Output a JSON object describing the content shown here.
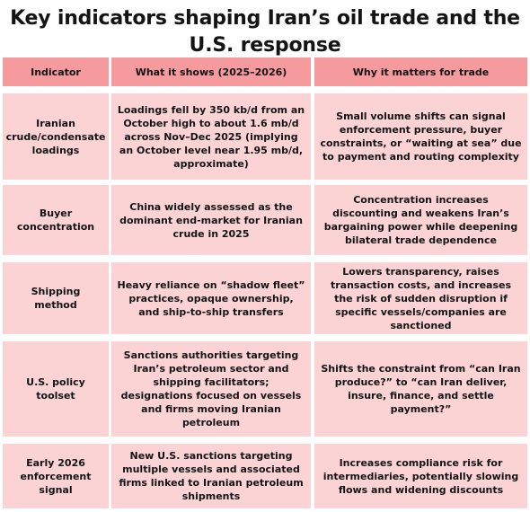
{
  "title": "Key indicators shaping Iran’s oil trade and the U.S. response",
  "columns": [
    "Indicator",
    "What it shows (2025–2026)",
    "Why it matters for trade"
  ],
  "rows": [
    {
      "indicator": "Iranian crude/condensate loadings",
      "what": "Loadings fell by 350 kb/d from an October high to about 1.6 mb/d across Nov–Dec 2025 (implying an October level near 1.95 mb/d, approximate)",
      "why": "Small volume shifts can signal enforcement pressure, buyer constraints, or “waiting at sea” due to payment and routing complexity"
    },
    {
      "indicator": "Buyer concentration",
      "what": "China widely assessed as the dominant end-market for Iranian crude in 2025",
      "why": "Concentration increases discounting and weakens Iran’s bargaining power while deepening bilateral trade dependence"
    },
    {
      "indicator": "Shipping method",
      "what": "Heavy reliance on “shadow fleet” practices, opaque ownership, and ship-to-ship transfers",
      "why": "Lowers transparency, raises transaction costs, and increases the risk of sudden disruption if specific vessels/companies are sanctioned"
    },
    {
      "indicator": "U.S. policy toolset",
      "what": "Sanctions authorities targeting Iran’s petroleum sector and shipping facilitators; designations focused on vessels and firms moving Iranian petroleum",
      "why": "Shifts the constraint from “can Iran produce?” to “can Iran deliver, insure, finance, and settle payment?”"
    },
    {
      "indicator": "Early 2026 enforcement signal",
      "what": "New U.S. sanctions targeting multiple vessels and associated firms linked to Iranian petroleum shipments",
      "why": "Increases compliance risk for intermediaries, potentially slowing flows and widening discounts"
    }
  ]
}
